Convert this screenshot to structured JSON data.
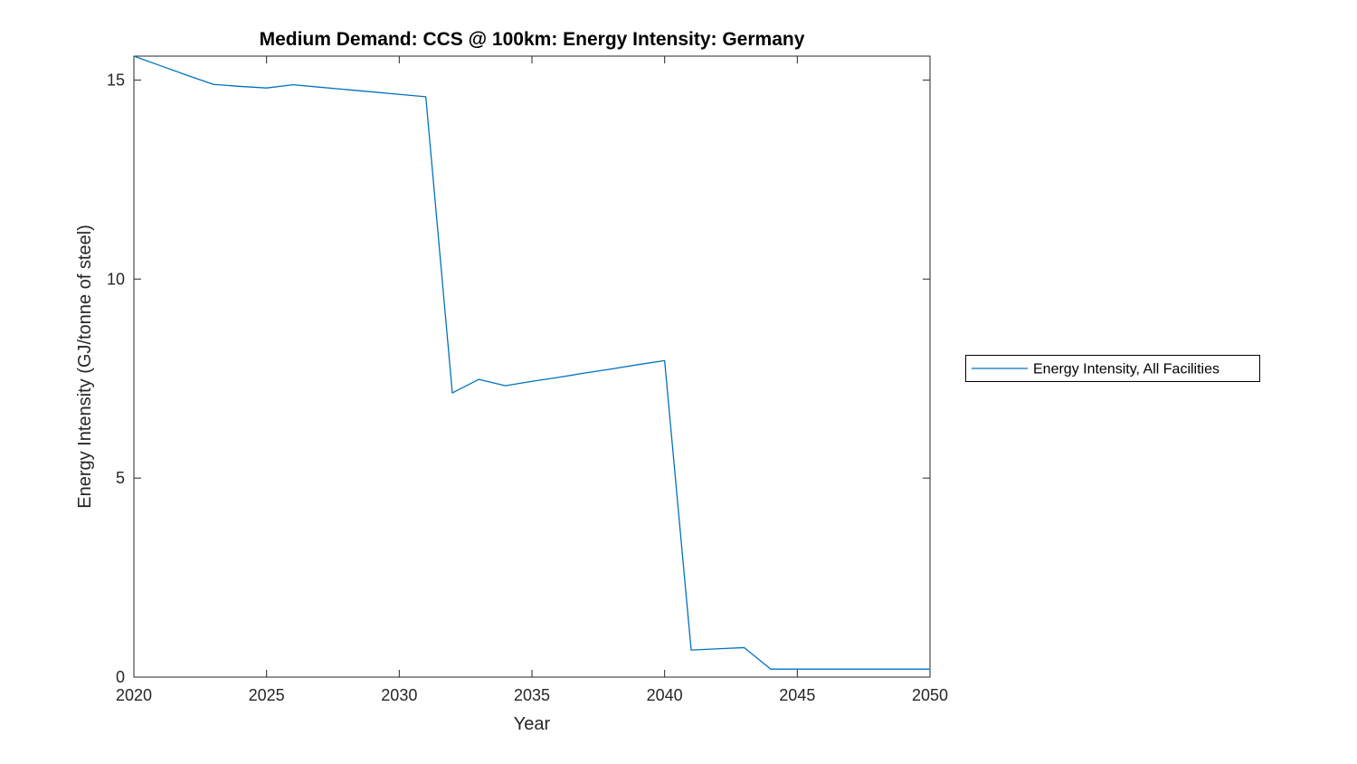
{
  "figure": {
    "background": "#ffffff"
  },
  "chart_data": {
    "type": "line",
    "title": "Medium Demand: CCS @ 100km: Energy Intensity: Germany",
    "xlabel": "Year",
    "ylabel": "Energy Intensity (GJ/tonne of steel)",
    "xlim": [
      2020,
      2050
    ],
    "ylim": [
      0,
      15.6
    ],
    "xticks": [
      2020,
      2025,
      2030,
      2035,
      2040,
      2045,
      2050
    ],
    "yticks": [
      0,
      5,
      10,
      15
    ],
    "grid": false,
    "legend": {
      "position": "outside-right",
      "entries": [
        "Energy Intensity, All Facilities"
      ]
    },
    "colors": {
      "line": "#0072BD",
      "axis": "#262626",
      "title": "#000000",
      "legend_border": "#000000",
      "legend_background": "#ffffff"
    },
    "x": [
      2020,
      2021,
      2022,
      2023,
      2024,
      2025,
      2026,
      2027,
      2028,
      2029,
      2030,
      2031,
      2032,
      2033,
      2034,
      2035,
      2036,
      2037,
      2038,
      2039,
      2040,
      2041,
      2042,
      2043,
      2044,
      2045,
      2046,
      2047,
      2048,
      2049,
      2050
    ],
    "series": [
      {
        "name": "Energy Intensity, All Facilities",
        "values": [
          15.6,
          15.36,
          15.12,
          14.89,
          14.84,
          14.8,
          14.88,
          14.82,
          14.76,
          14.7,
          14.64,
          14.58,
          7.14,
          7.48,
          7.32,
          7.43,
          7.53,
          7.64,
          7.74,
          7.85,
          7.95,
          0.68,
          0.71,
          0.74,
          0.2,
          0.2,
          0.2,
          0.2,
          0.2,
          0.2,
          0.2
        ]
      }
    ]
  }
}
